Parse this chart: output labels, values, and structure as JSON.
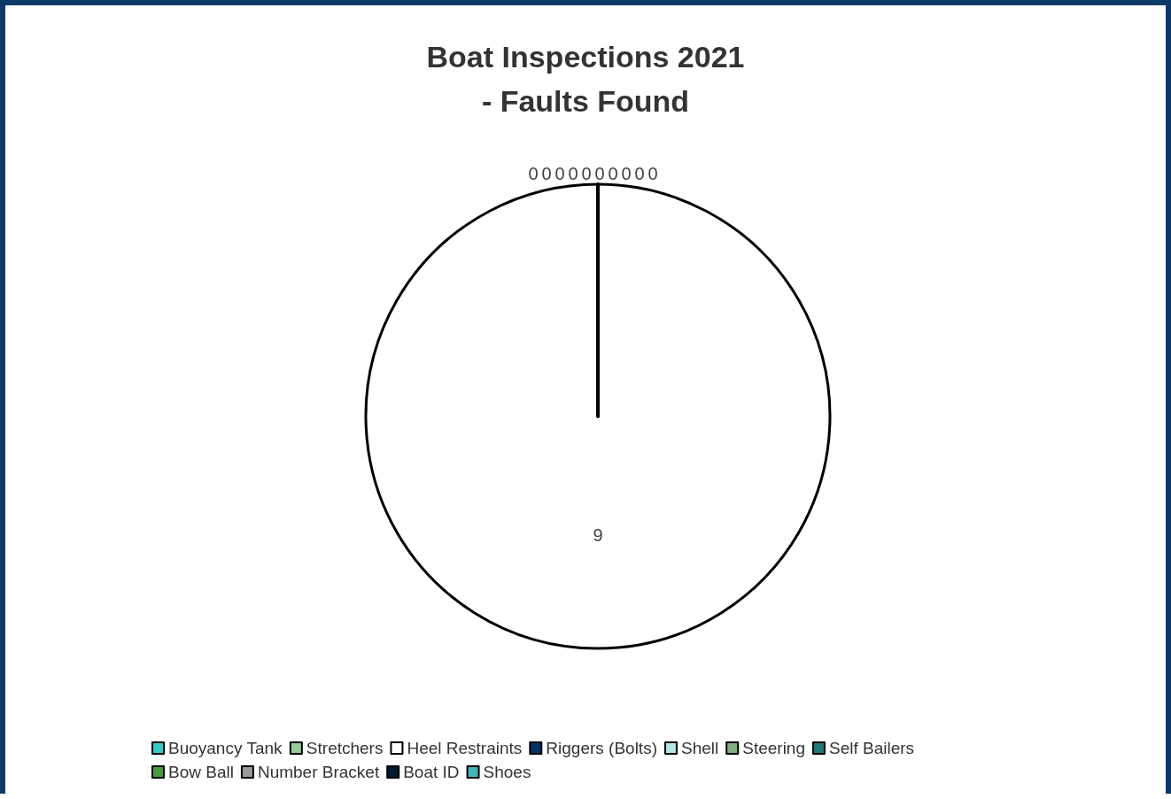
{
  "chart_data": {
    "type": "pie",
    "title": "Boat Inspections 2021\n- Faults Found",
    "categories": [
      "Buoyancy Tank",
      "Stretchers",
      "Heel Restraints",
      "Riggers (Bolts)",
      "Shell",
      "Steering",
      "Self Bailers",
      "Bow Ball",
      "Number Bracket",
      "Boat ID",
      "Shoes"
    ],
    "values": [
      0,
      0,
      9,
      0,
      0,
      0,
      0,
      0,
      0,
      0,
      0
    ],
    "colors": [
      "#33cccc",
      "#99cc99",
      "#ffffff",
      "#003366",
      "#b3e6e6",
      "#80b080",
      "#1a7a7a",
      "#4a9a40",
      "#999999",
      "#001a33",
      "#40b8b8"
    ],
    "value_labels": [
      "0",
      "0",
      "9",
      "0",
      "0",
      "0",
      "0",
      "0",
      "0",
      "0",
      "0"
    ],
    "legend": "bottom"
  }
}
